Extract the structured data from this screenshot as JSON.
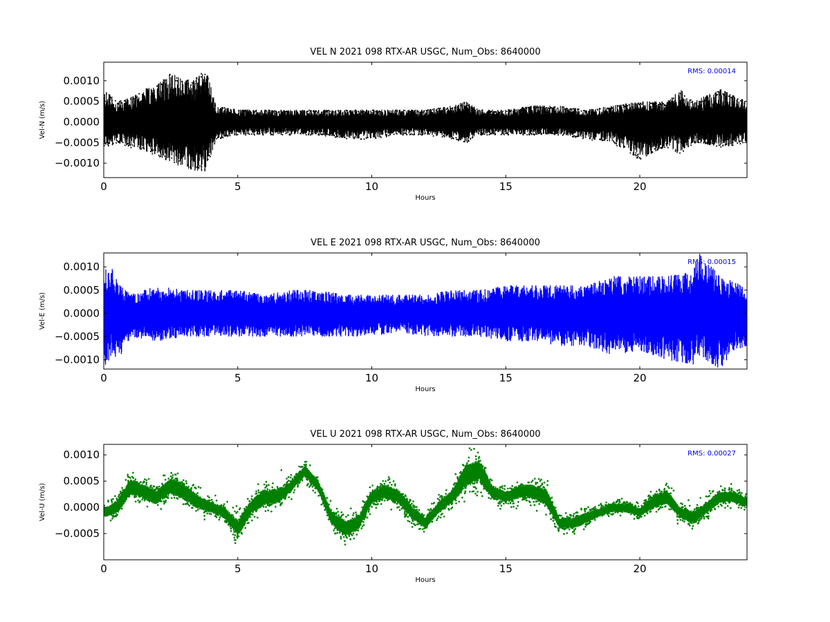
{
  "chart_data": [
    {
      "type": "line",
      "title": "VEL N 2021 098 RTX-AR  USGC, Num_Obs: 8640000",
      "xlabel": "Hours",
      "ylabel": "Vel-N (m/s)",
      "color": "#000000",
      "marker": "dot",
      "annotation": "RMS:  0.00014",
      "annotation_color": "#0000ff",
      "xlim": [
        0,
        24
      ],
      "ylim": [
        -0.00135,
        0.00145
      ],
      "xticks": [
        0,
        5,
        10,
        15,
        20
      ],
      "xtick_labels": [
        "0",
        "5",
        "10",
        "15",
        "20"
      ],
      "yticks": [
        -0.001,
        -0.0005,
        0.0,
        0.0005,
        0.001
      ],
      "ytick_labels": [
        "−0.0010",
        "−0.0005",
        "0.0000",
        "0.0005",
        "0.0010"
      ],
      "series": [
        {
          "x": [
            0,
            0.5,
            1,
            1.5,
            2,
            2.5,
            3,
            3.5,
            3.8,
            4.2,
            5,
            6,
            7,
            8,
            9,
            10,
            11,
            12,
            13,
            13.5,
            14,
            15,
            16,
            17,
            18,
            19,
            20,
            21,
            21.5,
            22,
            23,
            24
          ],
          "y_max": [
            0.0008,
            0.0005,
            0.0006,
            0.0008,
            0.0009,
            0.0012,
            0.001,
            0.0011,
            0.0013,
            0.0004,
            0.0003,
            0.0003,
            0.0003,
            0.0003,
            0.0003,
            0.0003,
            0.0003,
            0.0003,
            0.0004,
            0.0005,
            0.0003,
            0.0003,
            0.0004,
            0.0004,
            0.0003,
            0.0004,
            0.0005,
            0.0005,
            0.0008,
            0.0005,
            0.0008,
            0.0005
          ],
          "y_min": [
            -0.0006,
            -0.0005,
            -0.0006,
            -0.0007,
            -0.0008,
            -0.001,
            -0.0011,
            -0.0012,
            -0.0012,
            -0.0004,
            -0.0003,
            -0.0003,
            -0.0003,
            -0.0003,
            -0.0004,
            -0.0004,
            -0.0003,
            -0.0003,
            -0.0004,
            -0.0005,
            -0.0003,
            -0.0003,
            -0.0003,
            -0.0003,
            -0.0004,
            -0.0005,
            -0.0009,
            -0.0006,
            -0.0008,
            -0.0005,
            -0.0006,
            -0.0005
          ]
        }
      ]
    },
    {
      "type": "line",
      "title": "VEL E 2021 098 RTX-AR  USGC, Num_Obs: 8640000",
      "xlabel": "Hours",
      "ylabel": "Vel-E (m/s)",
      "color": "#0000ff",
      "marker": "line",
      "annotation": "RMS:  0.00015",
      "annotation_color": "#0000ff",
      "xlim": [
        0,
        24
      ],
      "ylim": [
        -0.0012,
        0.0013
      ],
      "xticks": [
        0,
        5,
        10,
        15,
        20
      ],
      "xtick_labels": [
        "0",
        "5",
        "10",
        "15",
        "20"
      ],
      "yticks": [
        -0.001,
        -0.0005,
        0.0,
        0.0005,
        0.001
      ],
      "ytick_labels": [
        "−0.0010",
        "−0.0005",
        "0.0000",
        "0.0005",
        "0.0010"
      ],
      "series": [
        {
          "x": [
            0,
            0.3,
            0.6,
            1,
            2,
            3,
            4,
            5,
            6,
            7,
            8,
            9,
            10,
            11,
            12,
            13,
            14,
            15,
            16,
            17,
            18,
            19,
            20,
            21,
            22,
            22.2,
            23,
            23.5,
            24
          ],
          "y_max": [
            0.001,
            0.001,
            0.0006,
            0.0004,
            0.0006,
            0.0005,
            0.0005,
            0.0005,
            0.0004,
            0.0005,
            0.0005,
            0.0004,
            0.0004,
            0.0004,
            0.0004,
            0.0005,
            0.0005,
            0.0006,
            0.0006,
            0.0006,
            0.0006,
            0.0008,
            0.0008,
            0.0008,
            0.0009,
            0.0013,
            0.0008,
            0.0007,
            0.0005
          ],
          "y_min": [
            -0.0012,
            -0.0009,
            -0.001,
            -0.0005,
            -0.0006,
            -0.0005,
            -0.0005,
            -0.0005,
            -0.0005,
            -0.0005,
            -0.0005,
            -0.0005,
            -0.0005,
            -0.0004,
            -0.0005,
            -0.0005,
            -0.0005,
            -0.0006,
            -0.0006,
            -0.0007,
            -0.0007,
            -0.0009,
            -0.0008,
            -0.001,
            -0.0011,
            -0.0009,
            -0.0012,
            -0.0008,
            -0.0007
          ]
        }
      ]
    },
    {
      "type": "scatter",
      "title": "VEL U 2021 098 RTX-AR  USGC, Num_Obs: 8640000",
      "xlabel": "Hours",
      "ylabel": "Vel-U (m/s)",
      "color": "#008000",
      "marker": "dot",
      "annotation": "RMS:  0.00027",
      "annotation_color": "#0000ff",
      "xlim": [
        0,
        24
      ],
      "ylim": [
        -0.001,
        0.0012
      ],
      "xticks": [
        0,
        5,
        10,
        15,
        20
      ],
      "xtick_labels": [
        "0",
        "5",
        "10",
        "15",
        "20"
      ],
      "yticks": [
        -0.0005,
        0.0,
        0.0005,
        0.001
      ],
      "ytick_labels": [
        "−0.0005",
        "0.0000",
        "0.0005",
        "0.0010"
      ],
      "series": [
        {
          "x": [
            0,
            0.5,
            1,
            1.5,
            2,
            2.5,
            3,
            3.5,
            4,
            4.5,
            5,
            5.5,
            6,
            6.5,
            7,
            7.5,
            8,
            8.5,
            9,
            9.5,
            10,
            10.5,
            11,
            11.5,
            12,
            12.5,
            13,
            13.5,
            14,
            14.5,
            15,
            15.5,
            16,
            16.5,
            17,
            17.5,
            18,
            18.5,
            19,
            19.5,
            20,
            20.5,
            21,
            21.5,
            22,
            22.5,
            23,
            23.5,
            24
          ],
          "y": [
            -0.0001,
            0.0,
            0.0004,
            0.0003,
            0.0002,
            0.0004,
            0.0003,
            0.0001,
            0.0,
            -0.0001,
            -0.0004,
            0.0,
            0.0002,
            0.0002,
            0.0004,
            0.0007,
            0.0004,
            -0.0002,
            -0.0004,
            -0.0003,
            0.0002,
            0.0003,
            0.0002,
            -0.0001,
            -0.0003,
            0.0,
            0.0002,
            0.0006,
            0.0007,
            0.0003,
            0.0002,
            0.0003,
            0.0003,
            0.0002,
            -0.0003,
            -0.0003,
            -0.0002,
            -0.0001,
            0.0,
            0.0,
            -0.0001,
            0.0001,
            0.0002,
            -0.0001,
            -0.0002,
            0.0,
            0.0002,
            0.0002,
            0.0001
          ],
          "y_spread": [
            0.00015,
            0.00025,
            0.0003,
            0.00025,
            0.00025,
            0.0003,
            0.0003,
            0.00025,
            0.0002,
            0.0002,
            0.0003,
            0.00025,
            0.0003,
            0.00025,
            0.0002,
            0.0002,
            0.0002,
            0.00025,
            0.0003,
            0.00025,
            0.00025,
            0.00025,
            0.00025,
            0.00025,
            0.0002,
            0.0002,
            0.00025,
            0.0004,
            0.0004,
            0.00025,
            0.0002,
            0.00025,
            0.00025,
            0.0003,
            0.0002,
            0.0002,
            0.0002,
            0.00015,
            0.00015,
            0.00015,
            0.00015,
            0.00025,
            0.00025,
            0.0002,
            0.00025,
            0.0002,
            0.0002,
            0.0002,
            0.00015
          ]
        }
      ]
    }
  ]
}
